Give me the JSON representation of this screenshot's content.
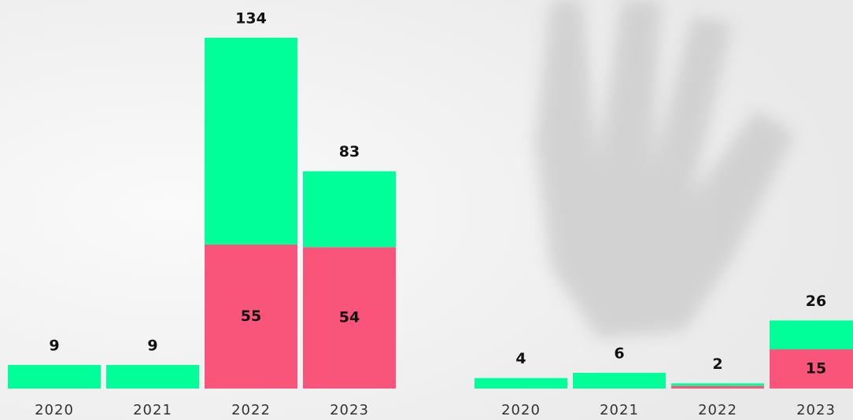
{
  "chart_data": [
    {
      "type": "bar",
      "stacked": true,
      "categories": [
        "2020",
        "2021",
        "2022",
        "2023"
      ],
      "series": [
        {
          "color": "#f9547a",
          "values": [
            null,
            null,
            55,
            54
          ]
        },
        {
          "color": "#00ff99",
          "values": [
            9,
            9,
            79,
            29
          ]
        }
      ],
      "totals": [
        9,
        9,
        134,
        83
      ],
      "ylim": [
        0,
        140
      ]
    },
    {
      "type": "bar",
      "stacked": true,
      "categories": [
        "2020",
        "2021",
        "2022",
        "2023"
      ],
      "series": [
        {
          "color": "#f9547a",
          "values": [
            null,
            null,
            1,
            15
          ]
        },
        {
          "color": "#00ff99",
          "values": [
            4,
            6,
            1,
            11
          ]
        }
      ],
      "totals": [
        4,
        6,
        2,
        26
      ],
      "ylim": [
        0,
        140
      ]
    }
  ]
}
